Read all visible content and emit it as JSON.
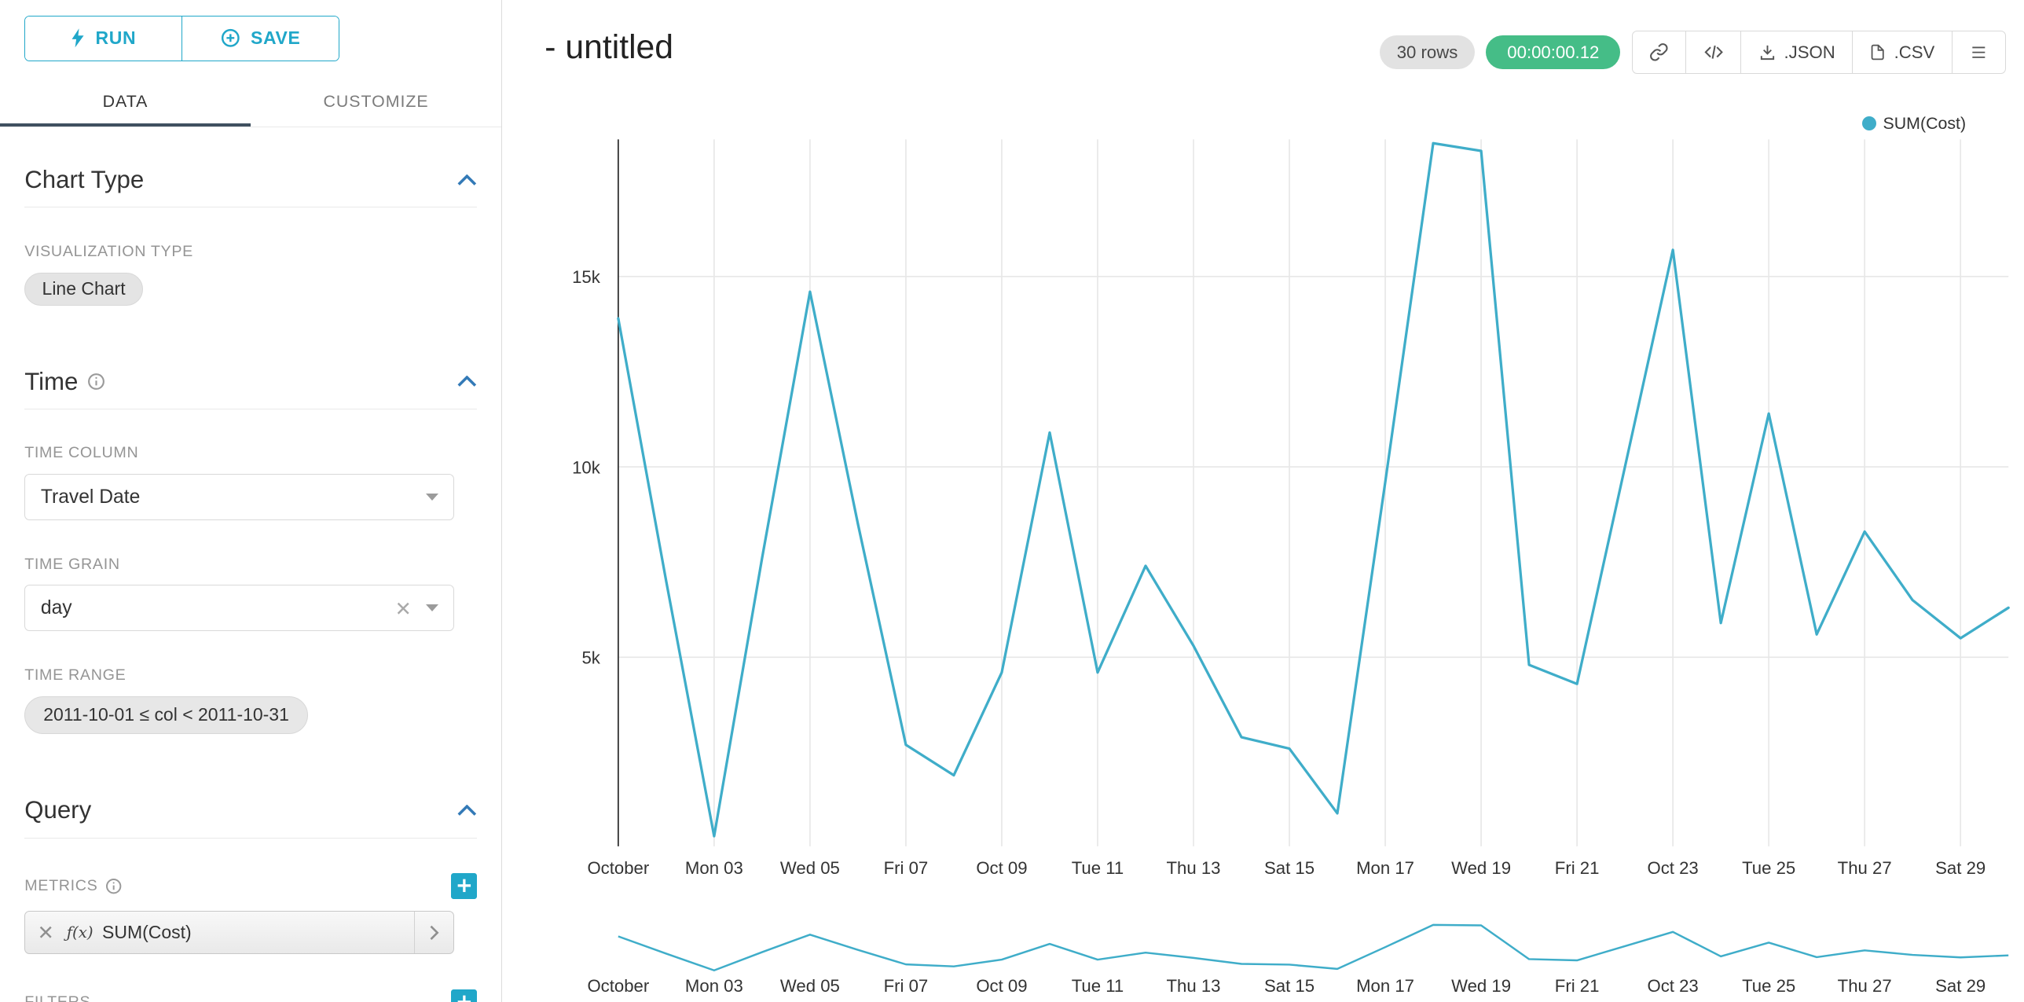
{
  "toolbar": {
    "run_label": "RUN",
    "save_label": "SAVE"
  },
  "tabs": {
    "data": "DATA",
    "customize": "CUSTOMIZE"
  },
  "panel": {
    "chart_type": {
      "title": "Chart Type",
      "visualization_type_label": "VISUALIZATION TYPE",
      "visualization_type_value": "Line Chart"
    },
    "time": {
      "title": "Time",
      "time_column_label": "TIME COLUMN",
      "time_column_value": "Travel Date",
      "time_grain_label": "TIME GRAIN",
      "time_grain_value": "day",
      "time_range_label": "TIME RANGE",
      "time_range_value": "2011-10-01 ≤ col < 2011-10-31"
    },
    "query": {
      "title": "Query",
      "metrics_label": "METRICS",
      "metric_fx_badge": "ƒ(x)",
      "metric_value": "SUM(Cost)",
      "filters_label": "FILTERS"
    }
  },
  "header": {
    "title": "- untitled",
    "rows_badge": "30 rows",
    "timer_badge": "00:00:00.12",
    "json_button_label": ".JSON",
    "csv_button_label": ".CSV"
  },
  "legend": {
    "label": "SUM(Cost)"
  },
  "colors": {
    "primary": "#20a7c9",
    "line": "#3fadc9",
    "timer_green": "#45bd87",
    "section_caret": "#337ab7",
    "tab_underline": "#3f5060",
    "grid": "#e7e7e7",
    "axis": "#222222"
  },
  "chart_data": {
    "type": "line",
    "title": "- untitled",
    "x": [
      "2011-10-01",
      "2011-10-02",
      "2011-10-03",
      "2011-10-04",
      "2011-10-05",
      "2011-10-06",
      "2011-10-07",
      "2011-10-08",
      "2011-10-09",
      "2011-10-10",
      "2011-10-11",
      "2011-10-12",
      "2011-10-13",
      "2011-10-14",
      "2011-10-15",
      "2011-10-16",
      "2011-10-17",
      "2011-10-18",
      "2011-10-19",
      "2011-10-20",
      "2011-10-21",
      "2011-10-22",
      "2011-10-23",
      "2011-10-24",
      "2011-10-25",
      "2011-10-26",
      "2011-10-27",
      "2011-10-28",
      "2011-10-29",
      "2011-10-30"
    ],
    "series": [
      {
        "name": "SUM(Cost)",
        "color": "#3fadc9",
        "values": [
          13900,
          7000,
          300,
          7600,
          14600,
          8500,
          2700,
          1900,
          4600,
          10900,
          4600,
          7400,
          5300,
          2900,
          2600,
          900,
          9600,
          18500,
          18300,
          4800,
          4300,
          10000,
          15700,
          5900,
          11400,
          5600,
          8300,
          6500,
          5500,
          6300
        ]
      }
    ],
    "x_tick_labels": [
      "October",
      "Mon 03",
      "Wed 05",
      "Fri 07",
      "Oct 09",
      "Tue 11",
      "Thu 13",
      "Sat 15",
      "Mon 17",
      "Wed 19",
      "Fri 21",
      "Oct 23",
      "Tue 25",
      "Thu 27",
      "Sat 29"
    ],
    "x_tick_step": 2,
    "yticks": [
      {
        "value": 5000,
        "label": "5k"
      },
      {
        "value": 10000,
        "label": "10k"
      },
      {
        "value": 15000,
        "label": "15k"
      }
    ],
    "ylim": [
      0,
      18600
    ],
    "grid": true,
    "legend_position": "top-right",
    "focus_mini_chart": true
  }
}
